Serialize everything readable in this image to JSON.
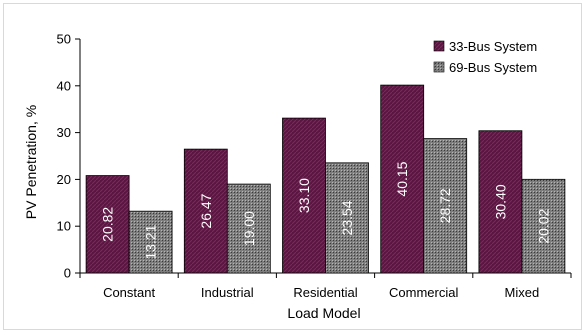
{
  "chart_data": {
    "type": "bar",
    "categories": [
      "Constant",
      "Industrial",
      "Residential",
      "Commercial",
      "Mixed"
    ],
    "series": [
      {
        "name": "33-Bus System",
        "values": [
          20.82,
          26.47,
          33.1,
          40.15,
          30.4
        ],
        "labels": [
          "20.82",
          "26.47",
          "33.10",
          "40.15",
          "30.40"
        ],
        "color": "#5a1540"
      },
      {
        "name": "69-Bus System",
        "values": [
          13.21,
          19.0,
          23.54,
          28.72,
          20.02
        ],
        "labels": [
          "13.21",
          "19.00",
          "23.54",
          "28.72",
          "20.02"
        ],
        "color": "#8c8c8c"
      }
    ],
    "xlabel": "Load Model",
    "ylabel": "PV Penetration, %",
    "ylim": [
      0,
      50
    ],
    "yticks": [
      0,
      10,
      20,
      30,
      40,
      50
    ],
    "grid": false,
    "legend": "top-right"
  }
}
